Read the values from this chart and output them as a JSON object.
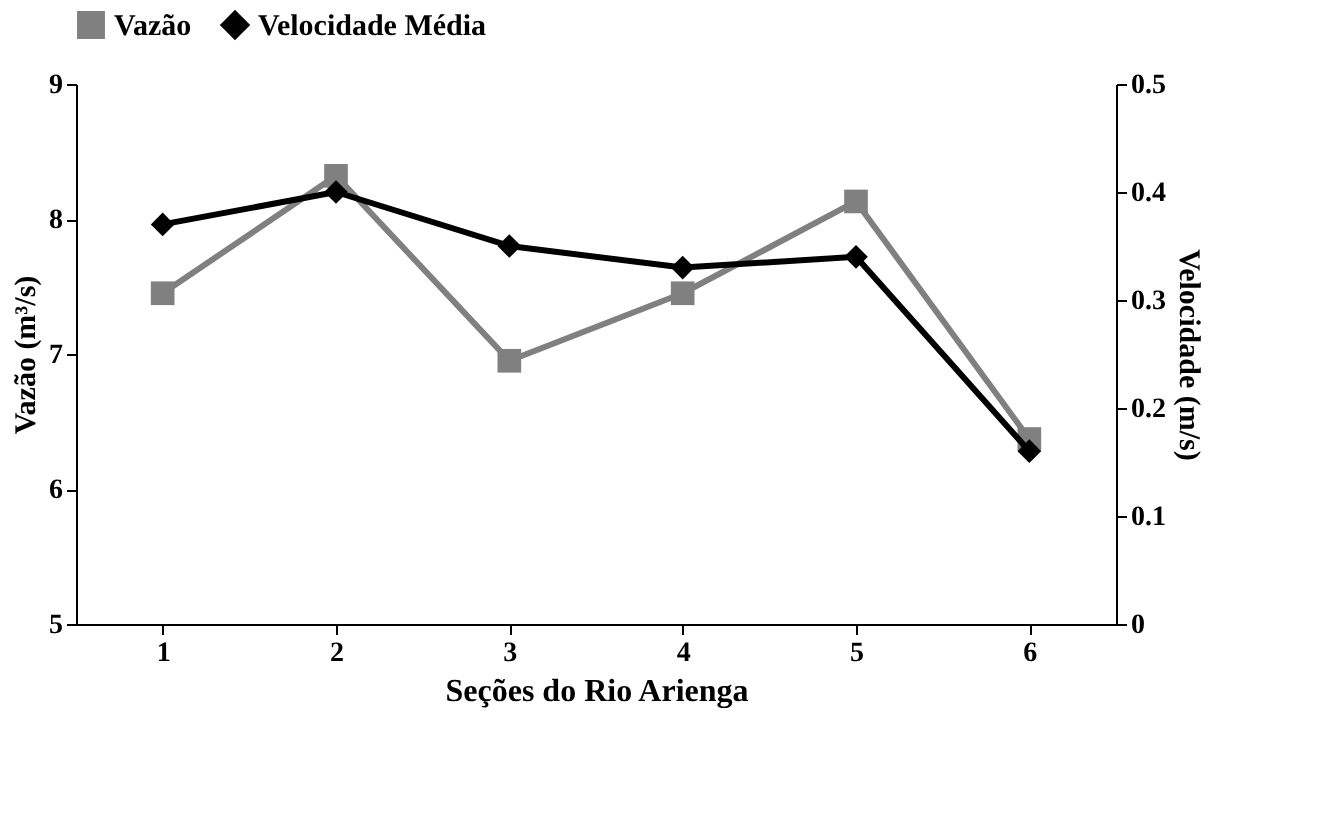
{
  "chart_data": {
    "type": "line",
    "xlabel": "Seções do Rio Arienga",
    "ylabel": "Vazão (m³/s)",
    "y2label": "Velocidade (m/s)",
    "categories": [
      "1",
      "2",
      "3",
      "4",
      "5",
      "6"
    ],
    "series": [
      {
        "name": "Vazão",
        "color": "#808080",
        "marker": "square",
        "values": [
          7.45,
          8.32,
          6.95,
          7.45,
          8.13,
          6.37
        ]
      },
      {
        "name": "Velocidade Média",
        "color": "#000000",
        "marker": "diamond",
        "axis": "y2",
        "values": [
          0.37,
          0.4,
          0.35,
          0.33,
          0.34,
          0.16
        ]
      }
    ],
    "ylim": [
      5,
      9
    ],
    "yticks": [
      5,
      6,
      7,
      8,
      9
    ],
    "y2lim": [
      0,
      0.5
    ],
    "y2ticks": [
      0,
      0.1,
      0.2,
      0.3,
      0.4,
      0.5
    ],
    "legend": "top",
    "grid": false,
    "line_style": "solid"
  }
}
